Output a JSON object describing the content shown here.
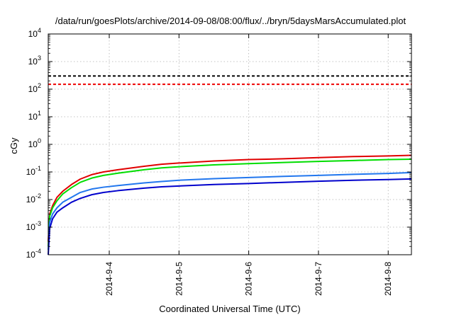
{
  "chart_data": {
    "type": "line",
    "title": "/data/run/goesPlots/archive/2014-09-08/08:00/flux/../bryn/5daysMarsAccumulated.plot",
    "xlabel": "Coordinated Universal Time (UTC)",
    "ylabel": "cGy",
    "x_scale": "time",
    "y_scale": "log",
    "xlim": [
      "2014-09-03T03:00",
      "2014-09-08T08:00"
    ],
    "ylim": [
      0.0001,
      10000
    ],
    "x_ticks": [
      {
        "value": "2014-09-04T00:00",
        "label": "2014-9-4"
      },
      {
        "value": "2014-09-05T00:00",
        "label": "2014-9-5"
      },
      {
        "value": "2014-09-06T00:00",
        "label": "2014-9-6"
      },
      {
        "value": "2014-09-07T00:00",
        "label": "2014-9-7"
      },
      {
        "value": "2014-09-08T00:00",
        "label": "2014-9-8"
      }
    ],
    "y_ticks": [
      {
        "value": 0.0001,
        "base": "10",
        "exp": "-4"
      },
      {
        "value": 0.001,
        "base": "10",
        "exp": "-3"
      },
      {
        "value": 0.01,
        "base": "10",
        "exp": "-2"
      },
      {
        "value": 0.1,
        "base": "10",
        "exp": "-1"
      },
      {
        "value": 1,
        "base": "10",
        "exp": "0"
      },
      {
        "value": 10,
        "base": "10",
        "exp": "1"
      },
      {
        "value": 100,
        "base": "10",
        "exp": "2"
      },
      {
        "value": 1000,
        "base": "10",
        "exp": "3"
      },
      {
        "value": 10000,
        "base": "10",
        "exp": "4"
      }
    ],
    "grid": true,
    "thresholds": [
      {
        "value": 300,
        "color": "#000000",
        "style": "dashed"
      },
      {
        "value": 150,
        "color": "#ee0000",
        "style": "dashed"
      }
    ],
    "series": [
      {
        "color": "#e00000",
        "points": [
          [
            "2014-09-03T03:00",
            0.0003
          ],
          [
            "2014-09-03T03:30",
            0.003
          ],
          [
            "2014-09-03T04:30",
            0.006
          ],
          [
            "2014-09-03T06:00",
            0.012
          ],
          [
            "2014-09-03T08:00",
            0.02
          ],
          [
            "2014-09-03T11:00",
            0.035
          ],
          [
            "2014-09-03T14:00",
            0.055
          ],
          [
            "2014-09-03T18:00",
            0.08
          ],
          [
            "2014-09-03T22:00",
            0.1
          ],
          [
            "2014-09-04T03:00",
            0.12
          ],
          [
            "2014-09-04T12:00",
            0.16
          ],
          [
            "2014-09-04T18:00",
            0.19
          ],
          [
            "2014-09-05T00:00",
            0.21
          ],
          [
            "2014-09-05T12:00",
            0.25
          ],
          [
            "2014-09-06T00:00",
            0.28
          ],
          [
            "2014-09-06T12:00",
            0.3
          ],
          [
            "2014-09-07T00:00",
            0.33
          ],
          [
            "2014-09-07T12:00",
            0.36
          ],
          [
            "2014-09-08T00:00",
            0.38
          ],
          [
            "2014-09-08T08:00",
            0.4
          ]
        ]
      },
      {
        "color": "#00dd00",
        "points": [
          [
            "2014-09-03T03:00",
            0.0002
          ],
          [
            "2014-09-03T03:30",
            0.0025
          ],
          [
            "2014-09-03T04:30",
            0.005
          ],
          [
            "2014-09-03T06:00",
            0.009
          ],
          [
            "2014-09-03T08:00",
            0.016
          ],
          [
            "2014-09-03T11:00",
            0.027
          ],
          [
            "2014-09-03T14:00",
            0.042
          ],
          [
            "2014-09-03T18:00",
            0.06
          ],
          [
            "2014-09-03T22:00",
            0.075
          ],
          [
            "2014-09-04T03:00",
            0.09
          ],
          [
            "2014-09-04T12:00",
            0.12
          ],
          [
            "2014-09-04T18:00",
            0.14
          ],
          [
            "2014-09-05T00:00",
            0.155
          ],
          [
            "2014-09-05T12:00",
            0.18
          ],
          [
            "2014-09-06T00:00",
            0.2
          ],
          [
            "2014-09-06T12:00",
            0.22
          ],
          [
            "2014-09-07T00:00",
            0.24
          ],
          [
            "2014-09-07T12:00",
            0.26
          ],
          [
            "2014-09-08T00:00",
            0.28
          ],
          [
            "2014-09-08T08:00",
            0.29
          ]
        ]
      },
      {
        "color": "#2277ee",
        "points": [
          [
            "2014-09-03T03:00",
            0.00015
          ],
          [
            "2014-09-03T03:30",
            0.0015
          ],
          [
            "2014-09-03T04:30",
            0.003
          ],
          [
            "2014-09-03T06:00",
            0.005
          ],
          [
            "2014-09-03T08:00",
            0.008
          ],
          [
            "2014-09-03T11:00",
            0.012
          ],
          [
            "2014-09-03T14:00",
            0.018
          ],
          [
            "2014-09-03T18:00",
            0.024
          ],
          [
            "2014-09-03T22:00",
            0.028
          ],
          [
            "2014-09-04T03:00",
            0.032
          ],
          [
            "2014-09-04T12:00",
            0.04
          ],
          [
            "2014-09-04T18:00",
            0.045
          ],
          [
            "2014-09-05T00:00",
            0.05
          ],
          [
            "2014-09-05T12:00",
            0.057
          ],
          [
            "2014-09-06T00:00",
            0.063
          ],
          [
            "2014-09-06T12:00",
            0.069
          ],
          [
            "2014-09-07T00:00",
            0.075
          ],
          [
            "2014-09-07T12:00",
            0.082
          ],
          [
            "2014-09-08T00:00",
            0.088
          ],
          [
            "2014-09-08T08:00",
            0.095
          ]
        ]
      },
      {
        "color": "#0000cc",
        "points": [
          [
            "2014-09-03T03:00",
            0.0001
          ],
          [
            "2014-09-03T03:30",
            0.0009
          ],
          [
            "2014-09-03T04:30",
            0.002
          ],
          [
            "2014-09-03T06:00",
            0.0035
          ],
          [
            "2014-09-03T08:00",
            0.005
          ],
          [
            "2014-09-03T11:00",
            0.008
          ],
          [
            "2014-09-03T14:00",
            0.011
          ],
          [
            "2014-09-03T18:00",
            0.015
          ],
          [
            "2014-09-03T22:00",
            0.018
          ],
          [
            "2014-09-04T03:00",
            0.021
          ],
          [
            "2014-09-04T12:00",
            0.026
          ],
          [
            "2014-09-04T18:00",
            0.029
          ],
          [
            "2014-09-05T00:00",
            0.031
          ],
          [
            "2014-09-05T12:00",
            0.035
          ],
          [
            "2014-09-06T00:00",
            0.038
          ],
          [
            "2014-09-06T12:00",
            0.042
          ],
          [
            "2014-09-07T00:00",
            0.046
          ],
          [
            "2014-09-07T12:00",
            0.05
          ],
          [
            "2014-09-08T00:00",
            0.053
          ],
          [
            "2014-09-08T08:00",
            0.056
          ]
        ]
      }
    ]
  }
}
